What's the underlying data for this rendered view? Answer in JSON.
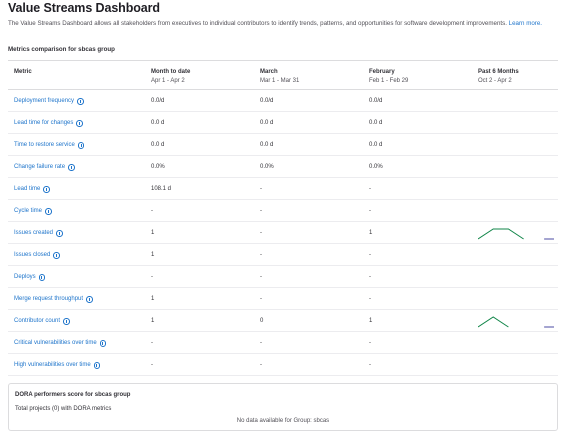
{
  "header": {
    "title": "Value Streams Dashboard",
    "description": "The Value Streams Dashboard allows all stakeholders from executives to individual contributors to identify trends, patterns, and opportunities for software development improvements.",
    "learn_more": "Learn more."
  },
  "comparison": {
    "section_title": "Metrics comparison for sbcas group",
    "columns": [
      {
        "label": "Metric",
        "sub": ""
      },
      {
        "label": "Month to date",
        "sub": "Apr 1 - Apr 2"
      },
      {
        "label": "March",
        "sub": "Mar 1 - Mar 31"
      },
      {
        "label": "February",
        "sub": "Feb 1 - Feb 29"
      },
      {
        "label": "Past 6 Months",
        "sub": "Oct 2 - Apr 2"
      }
    ],
    "rows": [
      {
        "metric": "Deployment frequency",
        "mtd": "0.0/d",
        "march": "0.0/d",
        "february": "0.0/d"
      },
      {
        "metric": "Lead time for changes",
        "mtd": "0.0 d",
        "march": "0.0 d",
        "february": "0.0 d"
      },
      {
        "metric": "Time to restore service",
        "mtd": "0.0 d",
        "march": "0.0 d",
        "february": "0.0 d"
      },
      {
        "metric": "Change failure rate",
        "mtd": "0.0%",
        "march": "0.0%",
        "february": "0.0%"
      },
      {
        "metric": "Lead time",
        "mtd": "108.1 d",
        "march": "-",
        "february": "-"
      },
      {
        "metric": "Cycle time",
        "mtd": "-",
        "march": "-",
        "february": "-"
      },
      {
        "metric": "Issues created",
        "mtd": "1",
        "march": "-",
        "february": "1"
      },
      {
        "metric": "Issues closed",
        "mtd": "1",
        "march": "-",
        "february": "-"
      },
      {
        "metric": "Deploys",
        "mtd": "-",
        "march": "-",
        "february": "-"
      },
      {
        "metric": "Merge request throughput",
        "mtd": "1",
        "march": "-",
        "february": "-"
      },
      {
        "metric": "Contributor count",
        "mtd": "1",
        "march": "0",
        "february": "1"
      },
      {
        "metric": "Critical vulnerabilities over time",
        "mtd": "-",
        "march": "-",
        "february": "-"
      },
      {
        "metric": "High vulnerabilities over time",
        "mtd": "-",
        "march": "-",
        "february": "-"
      }
    ],
    "sparklines": {
      "issues_created": [
        0,
        1,
        1,
        0,
        0,
        0
      ],
      "contributor_count": [
        0,
        1,
        0,
        0,
        0,
        0
      ],
      "colors": {
        "rising": "#108548",
        "flat": "#4b4ba3"
      }
    }
  },
  "dora": {
    "title": "DORA performers score for sbcas group",
    "total": "Total projects (0) with DORA metrics",
    "empty": "No data available for Group: sbcas"
  },
  "colors": {
    "link": "#1f75cb",
    "border": "#dcdcde"
  }
}
